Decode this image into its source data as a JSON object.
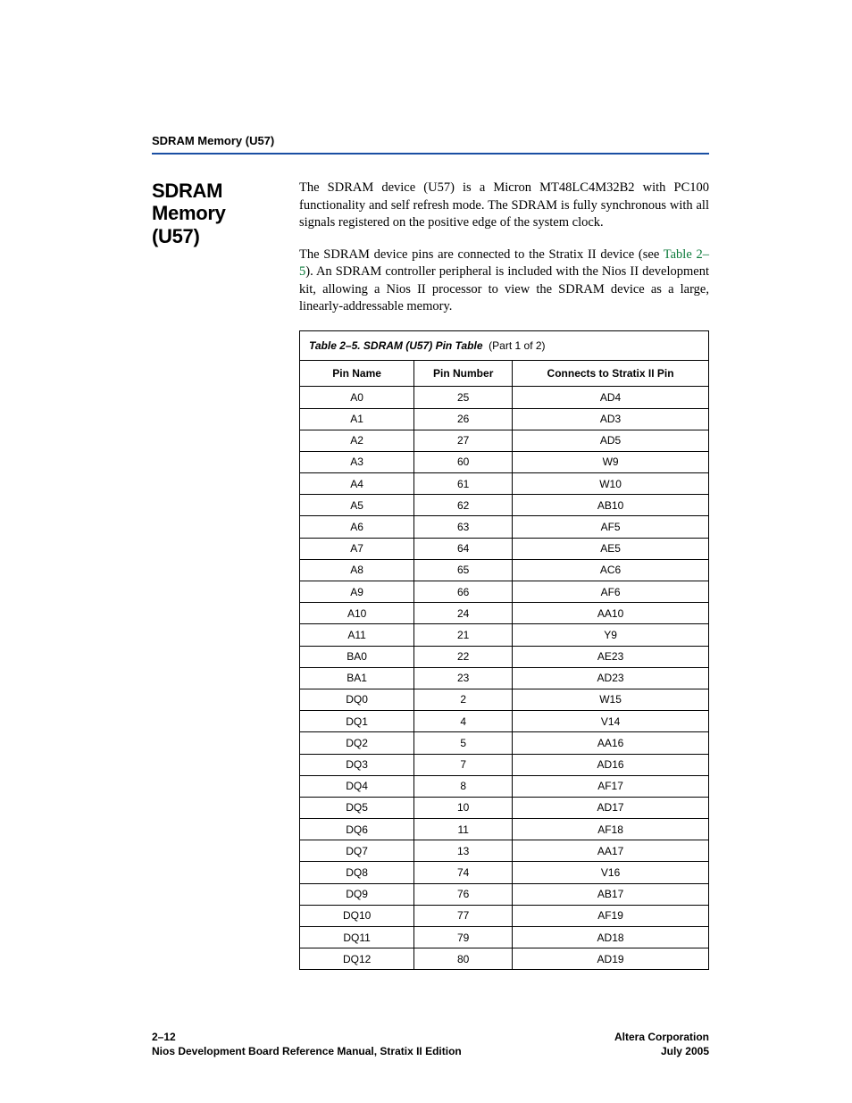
{
  "header": {
    "running_head": "SDRAM Memory (U57)",
    "rule_color": "#1a4fa3"
  },
  "section": {
    "heading_line1": "SDRAM Memory",
    "heading_line2": "(U57)",
    "para1": "The SDRAM device (U57) is a Micron MT48LC4M32B2 with PC100 functionality and self refresh mode. The SDRAM is fully synchronous with all signals registered on the positive edge of the system clock.",
    "para2_pre": "The SDRAM device pins are connected to the Stratix II device (see ",
    "para2_ref": "Table 2–5",
    "para2_post": "). An SDRAM controller peripheral is included with the Nios II development kit, allowing a Nios II processor to view the SDRAM device as a large, linearly-addressable memory."
  },
  "table": {
    "caption_main": "Table 2–5. SDRAM (U57) Pin Table",
    "caption_part": "(Part 1 of 2)",
    "columns": [
      "Pin Name",
      "Pin Number",
      "Connects to Stratix II Pin"
    ],
    "rows": [
      [
        "A0",
        "25",
        "AD4"
      ],
      [
        "A1",
        "26",
        "AD3"
      ],
      [
        "A2",
        "27",
        "AD5"
      ],
      [
        "A3",
        "60",
        "W9"
      ],
      [
        "A4",
        "61",
        "W10"
      ],
      [
        "A5",
        "62",
        "AB10"
      ],
      [
        "A6",
        "63",
        "AF5"
      ],
      [
        "A7",
        "64",
        "AE5"
      ],
      [
        "A8",
        "65",
        "AC6"
      ],
      [
        "A9",
        "66",
        "AF6"
      ],
      [
        "A10",
        "24",
        "AA10"
      ],
      [
        "A11",
        "21",
        "Y9"
      ],
      [
        "BA0",
        "22",
        "AE23"
      ],
      [
        "BA1",
        "23",
        "AD23"
      ],
      [
        "DQ0",
        "2",
        "W15"
      ],
      [
        "DQ1",
        "4",
        "V14"
      ],
      [
        "DQ2",
        "5",
        "AA16"
      ],
      [
        "DQ3",
        "7",
        "AD16"
      ],
      [
        "DQ4",
        "8",
        "AF17"
      ],
      [
        "DQ5",
        "10",
        "AD17"
      ],
      [
        "DQ6",
        "11",
        "AF18"
      ],
      [
        "DQ7",
        "13",
        "AA17"
      ],
      [
        "DQ8",
        "74",
        "V16"
      ],
      [
        "DQ9",
        "76",
        "AB17"
      ],
      [
        "DQ10",
        "77",
        "AF19"
      ],
      [
        "DQ11",
        "79",
        "AD18"
      ],
      [
        "DQ12",
        "80",
        "AD19"
      ]
    ]
  },
  "footer": {
    "page_num": "2–12",
    "doc_title": "Nios Development Board Reference Manual, Stratix II Edition",
    "company": "Altera Corporation",
    "date": "July 2005"
  }
}
